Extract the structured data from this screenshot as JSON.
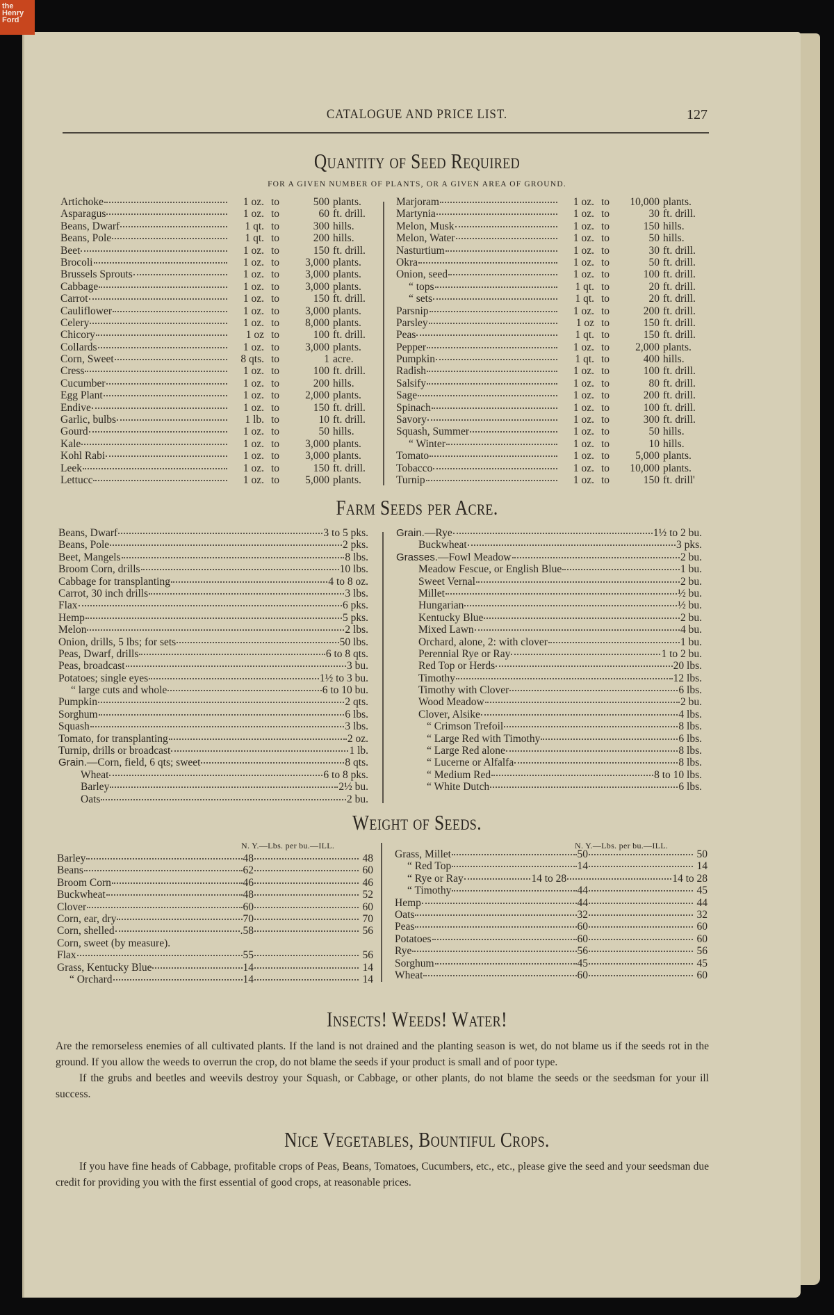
{
  "logo": {
    "text": "the Henry Ford",
    "color": "#c8461e"
  },
  "header": {
    "running_title": "CATALOGUE AND PRICE LIST.",
    "page_number": "127"
  },
  "quantity": {
    "title": "Quantity of Seed Required",
    "subtitle": "FOR A GIVEN NUMBER OF PLANTS, OR A GIVEN AREA OF GROUND.",
    "left": [
      {
        "name": "Artichoke",
        "qty": "1 oz.",
        "to": "to",
        "num": "500",
        "unit": "plants."
      },
      {
        "name": "Asparagus",
        "qty": "1 oz.",
        "to": "to",
        "num": "60",
        "unit": "ft. drill."
      },
      {
        "name": "Beans, Dwarf",
        "qty": "1 qt.",
        "to": "to",
        "num": "300",
        "unit": "hills."
      },
      {
        "name": "Beans, Pole",
        "qty": "1 qt.",
        "to": "to",
        "num": "200",
        "unit": "hills."
      },
      {
        "name": "Beet",
        "qty": "1 oz.",
        "to": "to",
        "num": "150",
        "unit": "ft. drill."
      },
      {
        "name": "Brocoli",
        "qty": "1 oz.",
        "to": "to",
        "num": "3,000",
        "unit": "plants."
      },
      {
        "name": "Brussels Sprouts",
        "qty": "1 oz.",
        "to": "to",
        "num": "3,000",
        "unit": "plants."
      },
      {
        "name": "Cabbage",
        "qty": "1 oz.",
        "to": "to",
        "num": "3,000",
        "unit": "plants."
      },
      {
        "name": "Carrot",
        "qty": "1 oz.",
        "to": "to",
        "num": "150",
        "unit": "ft. drill."
      },
      {
        "name": "Cauliflower",
        "qty": "1 oz.",
        "to": "to",
        "num": "3,000",
        "unit": "plants."
      },
      {
        "name": "Celery",
        "qty": "1 oz.",
        "to": "to",
        "num": "8,000",
        "unit": "plants."
      },
      {
        "name": "Chicory",
        "qty": "1 oz",
        "to": "to",
        "num": "100",
        "unit": "ft. drill."
      },
      {
        "name": "Collards",
        "qty": "1 oz.",
        "to": "to",
        "num": "3,000",
        "unit": "plants."
      },
      {
        "name": "Corn, Sweet",
        "qty": "8 qts.",
        "to": "to",
        "num": "1",
        "unit": "acre."
      },
      {
        "name": "Cress",
        "qty": "1 oz.",
        "to": "to",
        "num": "100",
        "unit": "ft. drill."
      },
      {
        "name": "Cucumber",
        "qty": "1 oz.",
        "to": "to",
        "num": "200",
        "unit": "hills."
      },
      {
        "name": "Egg Plant",
        "qty": "1 oz.",
        "to": "to",
        "num": "2,000",
        "unit": "plants."
      },
      {
        "name": "Endive",
        "qty": "1 oz.",
        "to": "to",
        "num": "150",
        "unit": "ft. drill."
      },
      {
        "name": "Garlic, bulbs",
        "qty": "1 lb.",
        "to": "to",
        "num": "10",
        "unit": "ft. drill."
      },
      {
        "name": "Gourd",
        "qty": "1 oz.",
        "to": "to",
        "num": "50",
        "unit": "hills."
      },
      {
        "name": "Kale",
        "qty": "1 oz.",
        "to": "to",
        "num": "3,000",
        "unit": "plants."
      },
      {
        "name": "Kohl Rabi",
        "qty": "1 oz.",
        "to": "to",
        "num": "3,000",
        "unit": "plants."
      },
      {
        "name": "Leek",
        "qty": "1 oz.",
        "to": "to",
        "num": "150",
        "unit": "ft. drill."
      },
      {
        "name": "Lettucc",
        "qty": "1 oz.",
        "to": "to",
        "num": "5,000",
        "unit": "plants."
      }
    ],
    "right": [
      {
        "name": "Marjoram",
        "qty": "1 oz.",
        "to": "to",
        "num": "10,000",
        "unit": "plants."
      },
      {
        "name": "Martynia",
        "qty": "1 oz.",
        "to": "to",
        "num": "30",
        "unit": "ft. drill."
      },
      {
        "name": "Melon, Musk",
        "qty": "1 oz.",
        "to": "to",
        "num": "150",
        "unit": "hills."
      },
      {
        "name": "Melon, Water",
        "qty": "1 oz.",
        "to": "to",
        "num": "50",
        "unit": "hills."
      },
      {
        "name": "Nasturtium",
        "qty": "1 oz.",
        "to": "to",
        "num": "30",
        "unit": "ft. drill."
      },
      {
        "name": "Okra",
        "qty": "1 oz.",
        "to": "to",
        "num": "50",
        "unit": "ft. drill."
      },
      {
        "name": "Onion, seed",
        "qty": "1 oz.",
        "to": "to",
        "num": "100",
        "unit": "ft. drill."
      },
      {
        "name": "“    tops",
        "sub": 2,
        "qty": "1 qt.",
        "to": "to",
        "num": "20",
        "unit": "ft. drill."
      },
      {
        "name": "“    sets",
        "sub": 2,
        "qty": "1 qt.",
        "to": "to",
        "num": "20",
        "unit": "ft. drill."
      },
      {
        "name": "Parsnip",
        "qty": "1 oz.",
        "to": "to",
        "num": "200",
        "unit": "ft. drill."
      },
      {
        "name": "Parsley",
        "qty": "1 oz",
        "to": "to",
        "num": "150",
        "unit": "ft. drill."
      },
      {
        "name": "Peas",
        "qty": "1 qt.",
        "to": "to",
        "num": "150",
        "unit": "ft. drill."
      },
      {
        "name": "Pepper",
        "qty": "1 oz.",
        "to": "to",
        "num": "2,000",
        "unit": "plants."
      },
      {
        "name": "Pumpkin",
        "qty": "1 qt.",
        "to": "to",
        "num": "400",
        "unit": "hills."
      },
      {
        "name": "Radish",
        "qty": "1 oz.",
        "to": "to",
        "num": "100",
        "unit": "ft. drill."
      },
      {
        "name": "Salsify",
        "qty": "1 oz.",
        "to": "to",
        "num": "80",
        "unit": "ft. drill."
      },
      {
        "name": "Sage",
        "qty": "1 oz.",
        "to": "to",
        "num": "200",
        "unit": "ft. drill."
      },
      {
        "name": "Spinach",
        "qty": "1 oz.",
        "to": "to",
        "num": "100",
        "unit": "ft. drill."
      },
      {
        "name": "Savory",
        "qty": "1 oz.",
        "to": "to",
        "num": "300",
        "unit": "ft. drill."
      },
      {
        "name": "Squash, Summer",
        "qty": "1 oz.",
        "to": "to",
        "num": "50",
        "unit": "hills."
      },
      {
        "name": "“      Winter",
        "sub": 2,
        "qty": "1 oz.",
        "to": "to",
        "num": "10",
        "unit": "hills."
      },
      {
        "name": "Tomato",
        "qty": "1 oz.",
        "to": "to",
        "num": "5,000",
        "unit": "plants."
      },
      {
        "name": "Tobacco",
        "qty": "1 oz.",
        "to": "to",
        "num": "10,000",
        "unit": "plants."
      },
      {
        "name": "Turnip",
        "qty": "1 oz.",
        "to": "to",
        "num": "150",
        "unit": "ft. drill'"
      }
    ]
  },
  "farm": {
    "title": "Farm Seeds per Acre.",
    "left": [
      {
        "name": "Beans, Dwarf",
        "val": "3 to 5 pks."
      },
      {
        "name": "Beans, Pole",
        "val": "2 pks."
      },
      {
        "name": "Beet, Mangels",
        "val": "8 lbs."
      },
      {
        "name": "Broom Corn, drills",
        "val": "10 lbs."
      },
      {
        "name": "Cabbage for transplanting",
        "val": "4 to 8 oz."
      },
      {
        "name": "Carrot, 30 inch drills",
        "val": "3 lbs."
      },
      {
        "name": "Flax",
        "val": "6 pks."
      },
      {
        "name": "Hemp",
        "val": "5 pks."
      },
      {
        "name": "Melon",
        "val": "2 lbs."
      },
      {
        "name": "Onion, drills, 5 lbs; for sets",
        "val": "50 lbs."
      },
      {
        "name": "Peas, Dwarf, drills",
        "val": "6 to 8 qts."
      },
      {
        "name": "Peas, broadcast",
        "val": "3 bu."
      },
      {
        "name": "Potatoes; single eyes",
        "val": "1½ to 3 bu."
      },
      {
        "name": "“        large cuts and whole",
        "sub": 2,
        "val": "6 to 10 bu."
      },
      {
        "name": "Pumpkin",
        "val": "2 qts."
      },
      {
        "name": "Sorghum",
        "val": "6 lbs."
      },
      {
        "name": "Squash",
        "val": "3 lbs."
      },
      {
        "name": "Tomato, for transplanting",
        "val": "2 oz."
      },
      {
        "name": "Turnip, drills or broadcast",
        "val": "1 lb."
      },
      {
        "name": "Grain.",
        "bold": true,
        "rest": "—Corn, field, 6 qts; sweet",
        "val": "8 qts."
      },
      {
        "name": "Wheat",
        "sub": 1,
        "val": "6 to 8 pks."
      },
      {
        "name": "Barley",
        "sub": 1,
        "val": "2½ bu."
      },
      {
        "name": "Oats",
        "sub": 1,
        "val": "2 bu."
      }
    ],
    "right": [
      {
        "name": "Grain.",
        "bold": true,
        "rest": "—Rye",
        "val": "1½ to 2 bu."
      },
      {
        "name": "Buckwheat",
        "sub": 1,
        "val": "3 pks."
      },
      {
        "name": "Grasses.",
        "bold": true,
        "rest": "—Fowl Meadow",
        "val": "2 bu."
      },
      {
        "name": "Meadow Fescue, or English Blue",
        "sub": 1,
        "val": "1 bu."
      },
      {
        "name": "Sweet Vernal",
        "sub": 1,
        "val": "2 bu."
      },
      {
        "name": "Millet",
        "sub": 1,
        "val": "½ bu."
      },
      {
        "name": "Hungarian",
        "sub": 1,
        "val": "½ bu."
      },
      {
        "name": "Kentucky Blue",
        "sub": 1,
        "val": "2 bu."
      },
      {
        "name": "Mixed Lawn",
        "sub": 1,
        "val": "4 bu."
      },
      {
        "name": "Orchard, alone, 2: with clover",
        "sub": 1,
        "val": "1 bu."
      },
      {
        "name": "Perennial Rye or Ray",
        "sub": 1,
        "val": "1 to 2 bu."
      },
      {
        "name": "Red Top or Herds",
        "sub": 1,
        "val": "20 lbs."
      },
      {
        "name": "Timothy",
        "sub": 1,
        "val": "12 lbs."
      },
      {
        "name": "Timothy with Clover",
        "sub": 1,
        "val": "6 lbs."
      },
      {
        "name": "Wood Meadow",
        "sub": 1,
        "val": "2 bu."
      },
      {
        "name": "Clover, Alsike",
        "sub": 1,
        "val": "4 lbs."
      },
      {
        "name": "“       Crimson Trefoil",
        "sub": 3,
        "val": "8 lbs."
      },
      {
        "name": "“       Large Red with Timothy",
        "sub": 3,
        "val": "6 lbs."
      },
      {
        "name": "“       Large Red alone",
        "sub": 3,
        "val": "8 lbs."
      },
      {
        "name": "“       Lucerne or Alfalfa",
        "sub": 3,
        "val": "8 lbs."
      },
      {
        "name": "“       Medium Red",
        "sub": 3,
        "val": "8 to 10 lbs."
      },
      {
        "name": "“       White Dutch",
        "sub": 3,
        "val": "6 lbs."
      }
    ]
  },
  "weight": {
    "title": "Weight of Seeds.",
    "col_head_left": "N. Y.—Lbs. per bu.—ILL.",
    "col_head_right": "N. Y.—Lbs. per bu.—ILL.",
    "left": [
      {
        "name": "Barley",
        "ny": "48",
        "ill": "48"
      },
      {
        "name": "Beans",
        "ny": "62",
        "ill": "60"
      },
      {
        "name": "Broom Corn",
        "ny": "46",
        "ill": "46"
      },
      {
        "name": "Buckwheat",
        "ny": "48",
        "ill": "52"
      },
      {
        "name": "Clover",
        "ny": "60",
        "ill": "60"
      },
      {
        "name": "Corn, ear, dry",
        "ny": "70",
        "ill": "70"
      },
      {
        "name": "Corn, shelled",
        "ny": ".58",
        "ill": "56"
      },
      {
        "name": "Corn, sweet (by measure).",
        "ny": "",
        "ill": ""
      },
      {
        "name": "Flax",
        "ny": "55",
        "ill": "56"
      },
      {
        "name": "Grass, Kentucky Blue",
        "ny": "14",
        "ill": "14"
      },
      {
        "name": "“   Orchard",
        "sub": 2,
        "ny": "14",
        "ill": "14"
      }
    ],
    "right": [
      {
        "name": "Grass, Millet",
        "ny": "50",
        "ill": "50"
      },
      {
        "name": "“   Red Top",
        "sub": 2,
        "ny": "14",
        "ill": "14"
      },
      {
        "name": "“   Rye or Ray",
        "sub": 2,
        "ny": "14 to 28",
        "ill": "14 to 28"
      },
      {
        "name": "“   Timothy",
        "sub": 2,
        "ny": "44",
        "ill": "45"
      },
      {
        "name": "Hemp",
        "ny": "44",
        "ill": "44"
      },
      {
        "name": "Oats",
        "ny": "32",
        "ill": "32"
      },
      {
        "name": "Peas",
        "ny": "60",
        "ill": "60"
      },
      {
        "name": "Potatoes",
        "ny": "60",
        "ill": "60"
      },
      {
        "name": "Rye",
        "ny": "56",
        "ill": "56"
      },
      {
        "name": "Sorghum",
        "ny": "45",
        "ill": "45"
      },
      {
        "name": "Wheat",
        "ny": "60",
        "ill": "60"
      }
    ]
  },
  "insects": {
    "title": "Insects!  Weeds!  Water!",
    "p1": "Are the remorseless enemies of all cultivated plants. If the land is not drained and the planting season is wet, do not blame us if the seeds rot in the ground. If you allow the weeds to overrun the crop, do not blame the seeds if your product is small and of poor type.",
    "p2": "If the grubs and beetles and weevils destroy your Squash, or Cabbage, or other plants, do not blame the seeds or the seedsman for your ill success."
  },
  "vegetables": {
    "title": "Nice Vegetables, Bountiful Crops.",
    "p1": "If you have fine heads of Cabbage, profitable crops of Peas, Beans, Tomatoes, Cucumbers, etc., etc., please give the seed and your seedsman due credit for providing you with the first essential of good crops, at reasonable prices."
  }
}
